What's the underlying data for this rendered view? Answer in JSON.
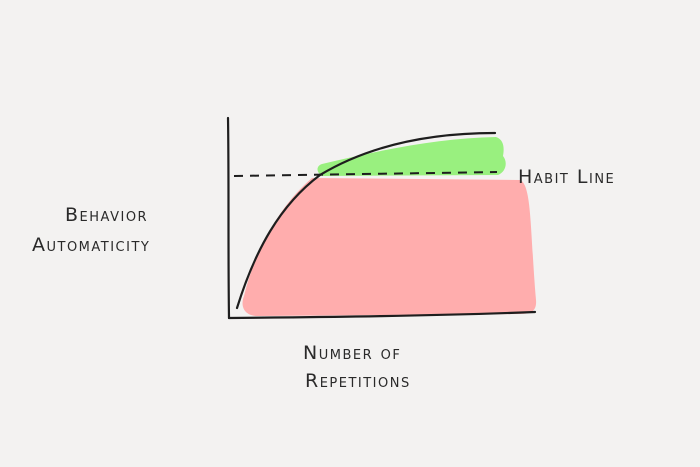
{
  "labels": {
    "y_axis": [
      "Behavior",
      "Automaticity"
    ],
    "x_axis": [
      "Number of",
      "Repetitions"
    ],
    "habit_line": "Habit Line"
  },
  "colors": {
    "background": "#f3f2f1",
    "below_habit_fill": "#ffadad",
    "above_habit_fill": "#99f07f",
    "ink": "#1e1e1e"
  }
}
